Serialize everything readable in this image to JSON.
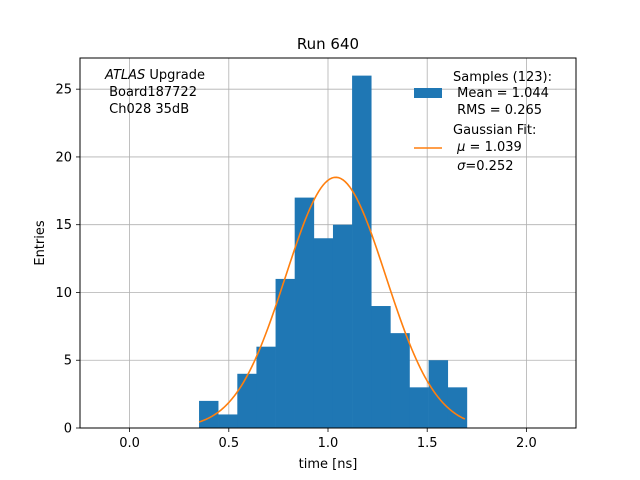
{
  "chart_data": {
    "type": "bar",
    "title": "Run 640",
    "xlabel": "time [ns]",
    "ylabel": "Entries",
    "xlim": [
      -0.25,
      2.25
    ],
    "ylim": [
      0,
      27.3
    ],
    "grid": true,
    "x_ticks": [
      0.0,
      0.5,
      1.0,
      1.5,
      2.0
    ],
    "x_tick_labels": [
      "0.0",
      "0.5",
      "1.0",
      "1.5",
      "2.0"
    ],
    "y_ticks": [
      0,
      5,
      10,
      15,
      20,
      25
    ],
    "y_tick_labels": [
      "0",
      "5",
      "10",
      "15",
      "20",
      "25"
    ],
    "histogram": {
      "name": "Samples",
      "color": "#1f77b4",
      "bin_edges": [
        0.35,
        0.4464,
        0.5429,
        0.6393,
        0.7357,
        0.8321,
        0.9286,
        1.025,
        1.1214,
        1.2179,
        1.3143,
        1.4107,
        1.5071,
        1.6036,
        1.7
      ],
      "counts": [
        2,
        1,
        4,
        6,
        11,
        17,
        14,
        15,
        26,
        9,
        7,
        3,
        5,
        3
      ]
    },
    "fit": {
      "name": "Gaussian Fit",
      "color": "#ff7f0e",
      "mu": 1.039,
      "sigma": 0.252,
      "amplitude": 18.5,
      "x_range": [
        0.35,
        1.69
      ]
    },
    "annotation": {
      "italic": "ATLAS",
      "rest": " Upgrade",
      "line2": " Board187722",
      "line3": " Ch028 35dB"
    },
    "legend": {
      "placement": "top-right",
      "samples_lines": [
        "Samples (123):",
        " Mean = 1.044",
        " RMS = 0.265"
      ],
      "fit_line1": "Gaussian Fit:",
      "fit_mu_prefix": " ",
      "fit_mu_symbol": "μ",
      "fit_mu_value": " = 1.039",
      "fit_sigma_prefix": " ",
      "fit_sigma_symbol": "σ",
      "fit_sigma_value": "=0.252"
    }
  }
}
